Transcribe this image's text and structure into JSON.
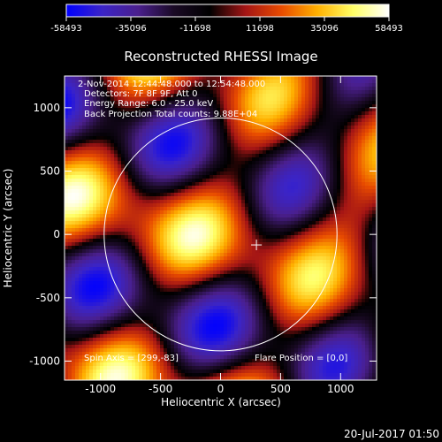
{
  "colorbar": {
    "tick_labels": [
      "-58493",
      "-35096",
      "-11698",
      "11698",
      "35096",
      "58493"
    ],
    "min": -58493,
    "max": 58493,
    "colors": [
      "#0000ff",
      "#3b24c7",
      "#4a1f8d",
      "#1a0a25",
      "#000000",
      "#a41515",
      "#e84b00",
      "#ffb000",
      "#ffff66",
      "#ffffff"
    ]
  },
  "chart_data": {
    "type": "heatmap",
    "title": "Reconstructed RHESSI Image",
    "xlabel": "Heliocentric X (arcsec)",
    "ylabel": "Heliocentric Y (arcsec)",
    "xlim": [
      -1300,
      1300
    ],
    "ylim": [
      -1150,
      1250
    ],
    "x_ticks": [
      -1000,
      -500,
      0,
      500,
      1000
    ],
    "y_ticks": [
      -1000,
      -500,
      0,
      500,
      1000
    ],
    "x_tick_labels": [
      "-1000",
      "-500",
      "0",
      "500",
      "1000"
    ],
    "y_tick_labels": [
      "-1000",
      "-500",
      "0",
      "500",
      "1000"
    ],
    "solar_disk": {
      "center": [
        0,
        0
      ],
      "radius_arcsec": 970
    },
    "marker": {
      "symbol": "+",
      "x": 299,
      "y": -83
    },
    "annotations": {
      "time_range": "2-Nov-2014 12:44:48.000 to 12:54:48.000",
      "detectors": "Detectors: 7F 8F 9F, Att 0",
      "energy_range": "Energy Range: 6.0 - 25.0 keV",
      "method": "Back Projection   Total counts: 9.88E+04",
      "spin_axis": "Spin Axis = [299,-83]",
      "flare_position": "Flare Position = [0,0]"
    }
  },
  "footer": {
    "date": "20-Jul-2017 01:50"
  }
}
